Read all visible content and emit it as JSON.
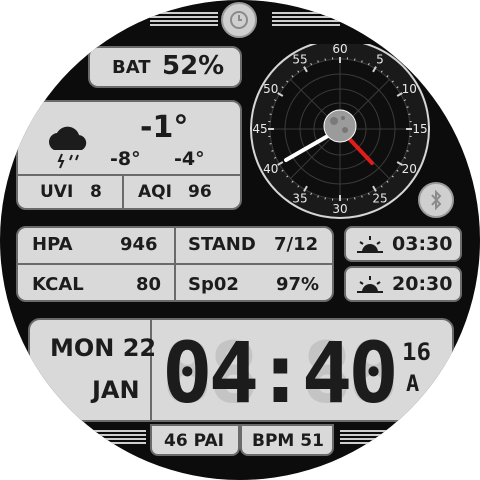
{
  "battery": {
    "label": "BAT",
    "value": "52%"
  },
  "weather": {
    "icon": "cloud-rain-thunder-icon",
    "temp": "-1°",
    "low": "-8°",
    "high": "-4°",
    "uvi_label": "UVI",
    "uvi": "8",
    "aqi_label": "AQI",
    "aqi": "96"
  },
  "stats": {
    "hpa_label": "HPA",
    "hpa": "946",
    "stand_label": "STAND",
    "stand": "7/12",
    "kcal_label": "KCAL",
    "kcal": "80",
    "spo2_label": "Sp02",
    "spo2": "97%"
  },
  "sun": {
    "sunrise": "03:30",
    "sunset": "20:30",
    "sunrise_icon": "sunrise-icon",
    "sunset_icon": "sunset-icon"
  },
  "date": {
    "day": "MON 22",
    "month": "JAN"
  },
  "time": {
    "hhmm": "04:40",
    "seconds": "16",
    "ampm": "A"
  },
  "bottom": {
    "pai": "46 PAI",
    "bpm": "BPM 51"
  },
  "compass": {
    "ticks": [
      "5",
      "10",
      "15",
      "20",
      "25",
      "30",
      "35",
      "40",
      "45",
      "50",
      "55",
      "60"
    ]
  },
  "colors": {
    "accent": "#e21b1b",
    "panel": "#d9d9d9",
    "bezel": "#0c0c0c"
  }
}
